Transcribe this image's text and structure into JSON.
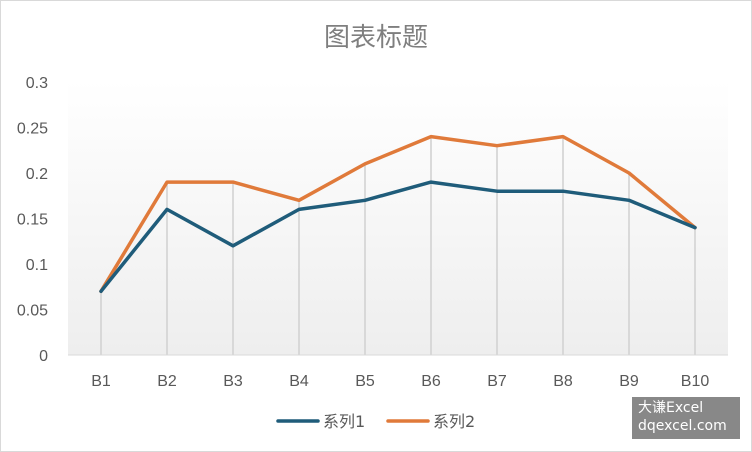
{
  "chart_data": {
    "type": "line",
    "title": "图表标题",
    "categories": [
      "B1",
      "B2",
      "B3",
      "B4",
      "B5",
      "B6",
      "B7",
      "B8",
      "B9",
      "B10"
    ],
    "series": [
      {
        "name": "系列1",
        "color": "#1f5c7a",
        "values": [
          0.07,
          0.16,
          0.12,
          0.16,
          0.17,
          0.19,
          0.18,
          0.18,
          0.17,
          0.14
        ]
      },
      {
        "name": "系列2",
        "color": "#e07a3a",
        "values": [
          0.07,
          0.19,
          0.19,
          0.17,
          0.21,
          0.24,
          0.23,
          0.24,
          0.2,
          0.14
        ]
      }
    ],
    "yticks": [
      "0",
      "0.05",
      "0.1",
      "0.15",
      "0.2",
      "0.25",
      "0.3"
    ],
    "ylim": [
      0,
      0.3
    ],
    "grid": "vertical drop lines",
    "legend_position": "bottom"
  },
  "watermark": {
    "line1": "大谦Excel",
    "line2": "dqexcel.com"
  }
}
